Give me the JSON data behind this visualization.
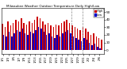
{
  "title": "Milwaukee Weather Outdoor Temperature Daily High/Low",
  "x_labels": [
    "1/1",
    "1/2",
    "1/3",
    "1/4",
    "1/5",
    "1/6",
    "1/7",
    "1/8",
    "1/9",
    "1/10",
    "1/11",
    "1/12",
    "1/13",
    "1/14",
    "1/15",
    "1/16",
    "1/17",
    "1/18",
    "1/19",
    "1/20",
    "1/21",
    "1/22",
    "1/23",
    "1/24",
    "1/25",
    "1/26",
    "1/27",
    "1/28",
    "1/29",
    "1/30",
    "1/31",
    "2/1",
    "2/2",
    "2/3",
    "2/4",
    "2/5",
    "2/6",
    "2/7"
  ],
  "highs": [
    35,
    30,
    38,
    32,
    36,
    40,
    38,
    42,
    36,
    34,
    38,
    36,
    40,
    44,
    42,
    38,
    34,
    36,
    32,
    30,
    34,
    32,
    36,
    38,
    40,
    36,
    32,
    30,
    28,
    26,
    30,
    28,
    24,
    20,
    22,
    18,
    16,
    14
  ],
  "lows": [
    20,
    18,
    24,
    18,
    22,
    26,
    24,
    28,
    22,
    20,
    24,
    22,
    26,
    30,
    28,
    24,
    20,
    22,
    18,
    16,
    20,
    18,
    22,
    24,
    26,
    22,
    18,
    16,
    14,
    12,
    16,
    14,
    10,
    6,
    8,
    4,
    2,
    0
  ],
  "high_color": "#cc0000",
  "low_color": "#0000cc",
  "background": "#ffffff",
  "ylim": [
    -5,
    55
  ],
  "ytick_vals": [
    0,
    10,
    20,
    30,
    40,
    50
  ],
  "ytick_labels": [
    "0",
    "10",
    "20",
    "30",
    "40",
    "50"
  ],
  "dashed_lines": [
    25.5,
    29.5
  ],
  "legend_labels": [
    "High",
    "Low"
  ],
  "dpi": 100,
  "figsize": [
    1.6,
    0.87
  ]
}
